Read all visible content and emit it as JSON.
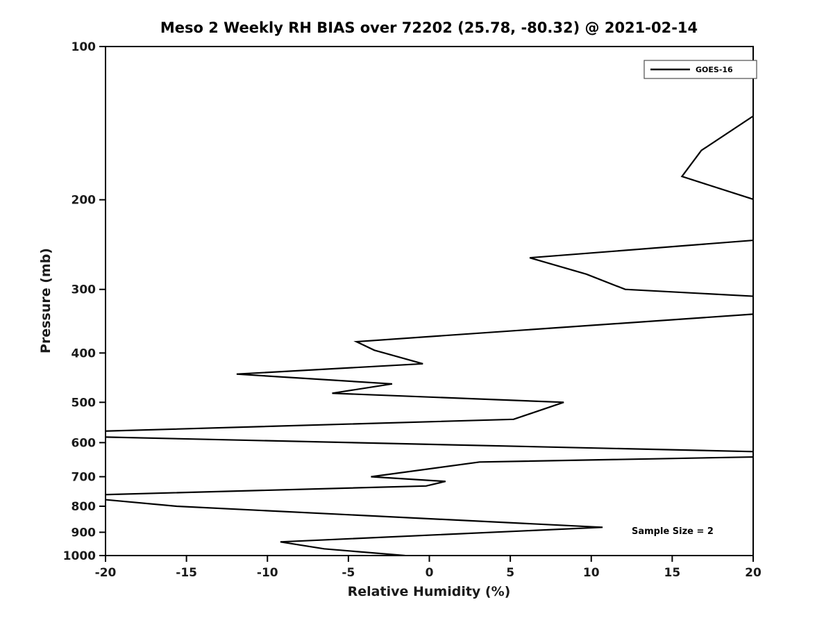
{
  "colors": {
    "line": "#000000",
    "frame": "#000000",
    "background": "#ffffff",
    "legend_border": "#4d4d4d"
  },
  "chart_data": {
    "type": "line",
    "title": "Meso 2 Weekly RH BIAS over 72202 (25.78, -80.32) @ 2021-02-14",
    "xlabel": "Relative Humidity (%)",
    "ylabel": "Pressure (mb)",
    "xlim": [
      -20,
      20
    ],
    "ylim": [
      1000,
      100
    ],
    "yscale": "log",
    "grid": false,
    "legend_position": "upper right",
    "xticks": [
      -20,
      -15,
      -10,
      -5,
      0,
      5,
      10,
      15,
      20
    ],
    "yticks": [
      100,
      200,
      300,
      400,
      500,
      600,
      700,
      800,
      900,
      1000
    ],
    "annotation": "Sample Size = 2",
    "series": [
      {
        "name": "GOES-16",
        "color": "#000000",
        "points_format": "[pressure_mb, rh_bias_percent]",
        "points": [
          [
            135,
            20.3
          ],
          [
            160,
            16.8
          ],
          [
            180,
            15.6
          ],
          [
            200,
            20.1
          ],
          [
            220,
            24.0
          ],
          [
            240,
            20.2
          ],
          [
            260,
            6.2
          ],
          [
            280,
            9.7
          ],
          [
            300,
            12.1
          ],
          [
            310,
            20.5
          ],
          [
            335,
            20.3
          ],
          [
            380,
            -4.5
          ],
          [
            395,
            -3.4
          ],
          [
            420,
            -0.4
          ],
          [
            440,
            -11.9
          ],
          [
            460,
            -2.3
          ],
          [
            480,
            -6.0
          ],
          [
            500,
            8.3
          ],
          [
            540,
            5.2
          ],
          [
            570,
            -20.5
          ],
          [
            585,
            -20.2
          ],
          [
            625,
            20.2
          ],
          [
            640,
            20.4
          ],
          [
            655,
            3.1
          ],
          [
            700,
            -3.6
          ],
          [
            715,
            1.0
          ],
          [
            730,
            -0.2
          ],
          [
            760,
            -20.6
          ],
          [
            775,
            -20.3
          ],
          [
            800,
            -15.6
          ],
          [
            880,
            10.7
          ],
          [
            940,
            -9.2
          ],
          [
            970,
            -6.5
          ],
          [
            1000,
            -1.5
          ]
        ]
      }
    ]
  }
}
